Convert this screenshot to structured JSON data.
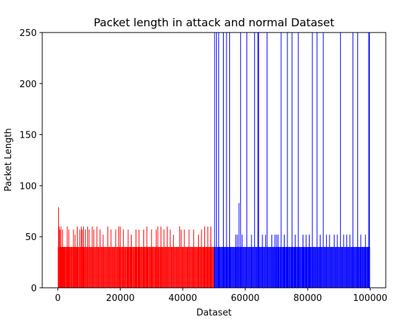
{
  "chart_data": {
    "type": "bar",
    "title": "Packet length in attack and normal Dataset",
    "xlabel": "Dataset",
    "ylabel": "Packet Length",
    "xlim": [
      -5000,
      105000
    ],
    "ylim": [
      0,
      250
    ],
    "xticks": [
      0,
      20000,
      40000,
      60000,
      80000,
      100000
    ],
    "yticks": [
      0,
      50,
      100,
      150,
      200,
      250
    ],
    "grid": false,
    "series": [
      {
        "color": "#ff0000",
        "x_range": [
          0,
          50000
        ],
        "base_value": 40,
        "bars": [
          {
            "x": 200,
            "value": 79
          },
          {
            "x": 400,
            "value": 60
          },
          {
            "x": 700,
            "value": 57
          },
          {
            "x": 1000,
            "value": 60
          },
          {
            "x": 1500,
            "value": 57
          },
          {
            "x": 2000,
            "value": 40
          },
          {
            "x": 3000,
            "value": 60
          },
          {
            "x": 3500,
            "value": 57
          },
          {
            "x": 5000,
            "value": 57
          },
          {
            "x": 5500,
            "value": 52
          },
          {
            "x": 6200,
            "value": 60
          },
          {
            "x": 7000,
            "value": 57
          },
          {
            "x": 7500,
            "value": 60
          },
          {
            "x": 7800,
            "value": 57
          },
          {
            "x": 8200,
            "value": 60
          },
          {
            "x": 8800,
            "value": 57
          },
          {
            "x": 9500,
            "value": 60
          },
          {
            "x": 10000,
            "value": 57
          },
          {
            "x": 11000,
            "value": 60
          },
          {
            "x": 11500,
            "value": 57
          },
          {
            "x": 12500,
            "value": 60
          },
          {
            "x": 13500,
            "value": 57
          },
          {
            "x": 14500,
            "value": 52
          },
          {
            "x": 16000,
            "value": 60
          },
          {
            "x": 17000,
            "value": 57
          },
          {
            "x": 18500,
            "value": 57
          },
          {
            "x": 19500,
            "value": 60
          },
          {
            "x": 20000,
            "value": 60
          },
          {
            "x": 21000,
            "value": 57
          },
          {
            "x": 22500,
            "value": 57
          },
          {
            "x": 23500,
            "value": 52
          },
          {
            "x": 25000,
            "value": 57
          },
          {
            "x": 26000,
            "value": 57
          },
          {
            "x": 27500,
            "value": 57
          },
          {
            "x": 28500,
            "value": 60
          },
          {
            "x": 30000,
            "value": 57
          },
          {
            "x": 31500,
            "value": 57
          },
          {
            "x": 32000,
            "value": 60
          },
          {
            "x": 33000,
            "value": 60
          },
          {
            "x": 34000,
            "value": 57
          },
          {
            "x": 35000,
            "value": 60
          },
          {
            "x": 36000,
            "value": 57
          },
          {
            "x": 37000,
            "value": 52
          },
          {
            "x": 39000,
            "value": 60
          },
          {
            "x": 39500,
            "value": 57
          },
          {
            "x": 40500,
            "value": 57
          },
          {
            "x": 42000,
            "value": 57
          },
          {
            "x": 43500,
            "value": 57
          },
          {
            "x": 45000,
            "value": 52
          },
          {
            "x": 46000,
            "value": 57
          },
          {
            "x": 47000,
            "value": 60
          },
          {
            "x": 48000,
            "value": 60
          },
          {
            "x": 49000,
            "value": 60
          }
        ]
      },
      {
        "color": "#0000ff",
        "x_range": [
          50000,
          100000
        ],
        "base_value": 40,
        "bars": [
          {
            "x": 50200,
            "value": 250
          },
          {
            "x": 50800,
            "value": 250
          },
          {
            "x": 51500,
            "value": 250
          },
          {
            "x": 53000,
            "value": 250
          },
          {
            "x": 54000,
            "value": 250
          },
          {
            "x": 55000,
            "value": 250
          },
          {
            "x": 57000,
            "value": 52
          },
          {
            "x": 57500,
            "value": 52
          },
          {
            "x": 58000,
            "value": 83
          },
          {
            "x": 58500,
            "value": 250
          },
          {
            "x": 59000,
            "value": 52
          },
          {
            "x": 60500,
            "value": 250
          },
          {
            "x": 62000,
            "value": 52
          },
          {
            "x": 63000,
            "value": 250
          },
          {
            "x": 64000,
            "value": 250
          },
          {
            "x": 64300,
            "value": 250
          },
          {
            "x": 65500,
            "value": 52
          },
          {
            "x": 66500,
            "value": 52
          },
          {
            "x": 67000,
            "value": 250
          },
          {
            "x": 68500,
            "value": 52
          },
          {
            "x": 69500,
            "value": 52
          },
          {
            "x": 70000,
            "value": 52
          },
          {
            "x": 70500,
            "value": 52
          },
          {
            "x": 71500,
            "value": 250
          },
          {
            "x": 72500,
            "value": 52
          },
          {
            "x": 73500,
            "value": 250
          },
          {
            "x": 75000,
            "value": 250
          },
          {
            "x": 76000,
            "value": 52
          },
          {
            "x": 77000,
            "value": 250
          },
          {
            "x": 78500,
            "value": 52
          },
          {
            "x": 79500,
            "value": 52
          },
          {
            "x": 80500,
            "value": 52
          },
          {
            "x": 81500,
            "value": 250
          },
          {
            "x": 83000,
            "value": 250
          },
          {
            "x": 84000,
            "value": 52
          },
          {
            "x": 85000,
            "value": 250
          },
          {
            "x": 86000,
            "value": 52
          },
          {
            "x": 87000,
            "value": 52
          },
          {
            "x": 88500,
            "value": 52
          },
          {
            "x": 89500,
            "value": 52
          },
          {
            "x": 90500,
            "value": 250
          },
          {
            "x": 91500,
            "value": 52
          },
          {
            "x": 92500,
            "value": 52
          },
          {
            "x": 93500,
            "value": 52
          },
          {
            "x": 94500,
            "value": 250
          },
          {
            "x": 96000,
            "value": 250
          },
          {
            "x": 97000,
            "value": 52
          },
          {
            "x": 98500,
            "value": 52
          },
          {
            "x": 99500,
            "value": 250
          },
          {
            "x": 99800,
            "value": 250
          }
        ]
      }
    ]
  }
}
